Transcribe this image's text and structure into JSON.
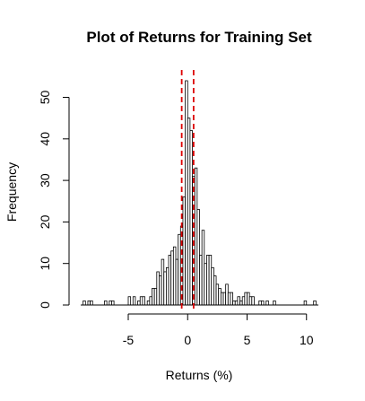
{
  "chart_data": {
    "type": "histogram",
    "title": "Plot of Returns for Training Set",
    "xlabel": "Returns (%)",
    "ylabel": "Frequency",
    "xlim": [
      -9.0,
      11.0
    ],
    "ylim": [
      0,
      54
    ],
    "xticks": [
      -5,
      0,
      5,
      10
    ],
    "yticks": [
      0,
      10,
      20,
      30,
      40,
      50
    ],
    "grid": false,
    "bin_width": 0.2,
    "bins": [
      [
        -8.8,
        1
      ],
      [
        -8.4,
        1
      ],
      [
        -8.2,
        1
      ],
      [
        -7.0,
        1
      ],
      [
        -6.6,
        1
      ],
      [
        -6.4,
        1
      ],
      [
        -5.0,
        2
      ],
      [
        -4.6,
        2
      ],
      [
        -4.2,
        1
      ],
      [
        -4.0,
        2
      ],
      [
        -3.8,
        2
      ],
      [
        -3.4,
        1
      ],
      [
        -3.2,
        2
      ],
      [
        -3.0,
        4
      ],
      [
        -2.8,
        4
      ],
      [
        -2.6,
        8
      ],
      [
        -2.4,
        7
      ],
      [
        -2.2,
        11
      ],
      [
        -2.0,
        8
      ],
      [
        -1.8,
        9
      ],
      [
        -1.6,
        12
      ],
      [
        -1.4,
        13
      ],
      [
        -1.2,
        14
      ],
      [
        -1.0,
        11
      ],
      [
        -0.8,
        17
      ],
      [
        -0.6,
        19
      ],
      [
        -0.4,
        26
      ],
      [
        -0.2,
        54
      ],
      [
        0.0,
        45
      ],
      [
        0.2,
        42
      ],
      [
        0.4,
        31
      ],
      [
        0.6,
        33
      ],
      [
        0.8,
        23
      ],
      [
        1.0,
        12
      ],
      [
        1.2,
        18
      ],
      [
        1.4,
        10
      ],
      [
        1.6,
        12
      ],
      [
        1.8,
        12
      ],
      [
        2.0,
        9
      ],
      [
        2.2,
        7
      ],
      [
        2.4,
        5
      ],
      [
        2.6,
        4
      ],
      [
        2.8,
        3
      ],
      [
        3.0,
        3
      ],
      [
        3.2,
        5
      ],
      [
        3.4,
        3
      ],
      [
        3.6,
        3
      ],
      [
        3.8,
        1
      ],
      [
        4.0,
        1
      ],
      [
        4.2,
        2
      ],
      [
        4.4,
        1
      ],
      [
        4.6,
        2
      ],
      [
        4.8,
        3
      ],
      [
        5.0,
        3
      ],
      [
        5.2,
        2
      ],
      [
        5.4,
        2
      ],
      [
        6.0,
        1
      ],
      [
        6.2,
        1
      ],
      [
        6.6,
        1
      ],
      [
        7.2,
        1
      ],
      [
        9.8,
        1
      ],
      [
        10.6,
        1
      ]
    ],
    "reference_lines": [
      {
        "x": -0.5,
        "color": "#dd0000"
      },
      {
        "x": 0.5,
        "color": "#dd0000"
      }
    ]
  }
}
